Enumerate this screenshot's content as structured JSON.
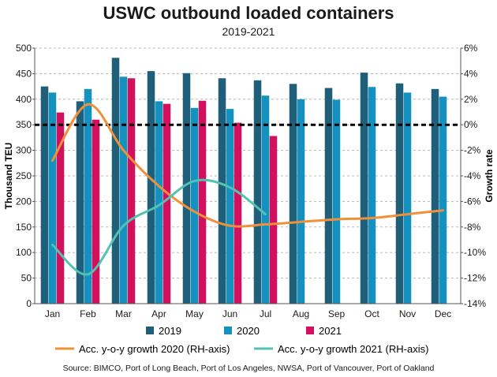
{
  "title": "USWC outbound loaded containers",
  "subtitle": "2019-2021",
  "source": "Source: BIMCO, Port of Long Beach, Port of Los Angeles, NWSA, Port of Vancouver, Port of Oakland",
  "colors": {
    "s2019": "#1f5f7a",
    "s2020": "#1591c0",
    "s2021": "#d1105e",
    "g2020": "#f0913a",
    "g2021": "#52c2b2",
    "zero_line": "#000000"
  },
  "chart_data": {
    "type": "bar",
    "title": "USWC outbound loaded containers",
    "subtitle": "2019-2021",
    "categories": [
      "Jan",
      "Feb",
      "Mar",
      "Apr",
      "May",
      "Jun",
      "Jul",
      "Aug",
      "Sep",
      "Oct",
      "Nov",
      "Dec"
    ],
    "ylabel": "Thousand TEU",
    "ylim": [
      0,
      500
    ],
    "yticks": [
      "0",
      "50",
      "100",
      "150",
      "200",
      "250",
      "300",
      "350",
      "400",
      "450",
      "500"
    ],
    "y2label": "Growth rate",
    "y2lim": [
      -14,
      6
    ],
    "y2ticks": [
      "-14%",
      "-12%",
      "-10%",
      "-8%",
      "-6%",
      "-4%",
      "-2%",
      "0%",
      "2%",
      "4%",
      "6%"
    ],
    "grid": true,
    "legend_position": "bottom",
    "series": [
      {
        "name": "2019",
        "type": "bar",
        "axis": "left",
        "values": [
          425,
          396,
          481,
          455,
          451,
          441,
          437,
          430,
          422,
          452,
          431,
          420
        ]
      },
      {
        "name": "2020",
        "type": "bar",
        "axis": "left",
        "values": [
          413,
          420,
          444,
          396,
          383,
          381,
          407,
          400,
          399,
          424,
          413,
          405
        ]
      },
      {
        "name": "2021",
        "type": "bar",
        "axis": "left",
        "values": [
          374,
          360,
          441,
          391,
          397,
          354,
          328,
          null,
          null,
          null,
          null,
          null
        ]
      },
      {
        "name": "Acc. y-o-y growth 2020 (RH-axis)",
        "type": "line",
        "axis": "right",
        "values": [
          -2.8,
          1.6,
          -2.0,
          -4.8,
          -6.8,
          -7.9,
          -7.8,
          -7.6,
          -7.4,
          -7.3,
          -7.0,
          -6.7
        ]
      },
      {
        "name": "Acc. y-o-y growth 2021 (RH-axis)",
        "type": "line",
        "axis": "right",
        "values": [
          -9.4,
          -11.7,
          -7.9,
          -6.3,
          -4.4,
          -4.9,
          -7.0,
          null,
          null,
          null,
          null,
          null
        ]
      }
    ],
    "reference_line": {
      "axis": "right",
      "value": 0,
      "style": "dashed"
    }
  }
}
